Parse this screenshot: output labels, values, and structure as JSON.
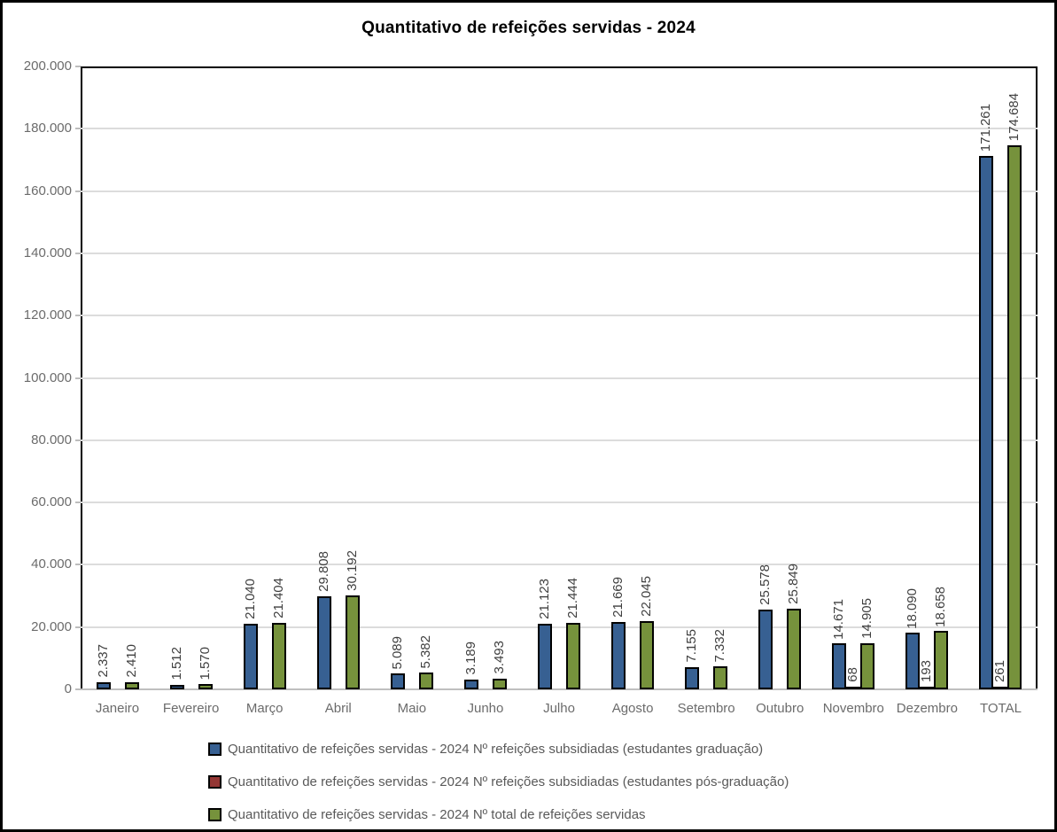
{
  "chart_data": {
    "type": "bar",
    "title": "Quantitativo de refeições servidas - 2024",
    "categories": [
      "Janeiro",
      "Fevereiro",
      "Março",
      "Abril",
      "Maio",
      "Junho",
      "Julho",
      "Agosto",
      "Setembro",
      "Outubro",
      "Novembro",
      "Dezembro",
      "TOTAL"
    ],
    "series": [
      {
        "name": "Quantitativo de refeições servidas - 2024 Nº refeições subsidiadas (estudantes graduação)",
        "color": "#376092",
        "values": [
          2337,
          1512,
          21040,
          29808,
          5089,
          3189,
          21123,
          21669,
          7155,
          25578,
          14671,
          18090,
          171261
        ],
        "labels": [
          "2.337",
          "1.512",
          "21.040",
          "29.808",
          "5.089",
          "3.189",
          "21.123",
          "21.669",
          "7.155",
          "25.578",
          "14.671",
          "18.090",
          "171.261"
        ]
      },
      {
        "name": "Quantitativo de refeições servidas - 2024 Nº refeições subsidiadas (estudantes pós-graduação)",
        "color": "#943634",
        "values": [
          null,
          null,
          null,
          null,
          null,
          null,
          null,
          null,
          null,
          null,
          68,
          193,
          261
        ],
        "labels": [
          null,
          null,
          null,
          null,
          null,
          null,
          null,
          null,
          null,
          null,
          "68",
          "193",
          "261"
        ]
      },
      {
        "name": "Quantitativo de refeições servidas - 2024 Nº total de refeições servidas",
        "color": "#76923C",
        "values": [
          2410,
          1570,
          21404,
          30192,
          5382,
          3493,
          21444,
          22045,
          7332,
          25849,
          14905,
          18658,
          174684
        ],
        "labels": [
          "2.410",
          "1.570",
          "21.404",
          "30.192",
          "5.382",
          "3.493",
          "21.444",
          "22.045",
          "7.332",
          "25.849",
          "14.905",
          "18.658",
          "174.684"
        ]
      }
    ],
    "ylim": [
      0,
      200000
    ],
    "ytick_step": 20000,
    "ytick_labels": [
      "0",
      "20.000",
      "40.000",
      "60.000",
      "80.000",
      "100.000",
      "120.000",
      "140.000",
      "160.000",
      "180.000",
      "200.000"
    ],
    "grid": true,
    "legend_position": "bottom-left"
  },
  "colors": {
    "background": "#ffffff",
    "outer_border": "#000000",
    "plot_border": "#000000",
    "x_axis_line": "#bfbfbf",
    "gridline": "#dcdcdc",
    "axis_text": "#6b6b6b",
    "data_label": "#3f3f3f",
    "legend_text": "#595959",
    "title": "#000000"
  }
}
